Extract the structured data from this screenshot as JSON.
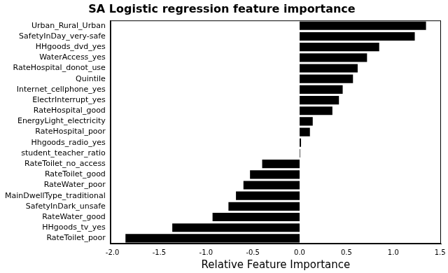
{
  "chart_data": {
    "type": "bar",
    "orientation": "horizontal",
    "title": "SA Logistic regression feature importance",
    "x_label": "Relative Feature Importance",
    "categories": [
      "Urban_Rural_Urban",
      "SafetyInDay_very-safe",
      "HHgoods_dvd_yes",
      "WaterAccess_yes",
      "RateHospital_donot_use",
      "Quintile",
      "Internet_cellphone_yes",
      "ElectrInterrupt_yes",
      "RateHospital_good",
      "EnergyLight_electricity",
      "RateHospital_poor",
      "Hhgoods_radio_yes",
      "student_teacher_ratio",
      "RateToilet_no_access",
      "RateToilet_good",
      "RateWater_poor",
      "MainDwellType_traditional",
      "SafetyInDark_unsafe",
      "RateWater_good",
      "HHgoods_tv_yes",
      "RateToilet_poor"
    ],
    "values": [
      1.35,
      1.23,
      0.85,
      0.72,
      0.62,
      0.57,
      0.46,
      0.42,
      0.35,
      0.14,
      0.11,
      0.015,
      0.005,
      -0.4,
      -0.53,
      -0.6,
      -0.68,
      -0.76,
      -0.93,
      -1.36,
      -1.86
    ],
    "color": "#000000",
    "xlim": [
      -2.02,
      1.51
    ],
    "xticks": [
      {
        "value": -2,
        "label": "-2.0"
      },
      -1.5,
      {
        "value": -1,
        "label": "-1.0"
      },
      -0.5,
      {
        "value": 0,
        "label": "0.0"
      },
      0.5,
      {
        "value": 1,
        "label": "1.0"
      },
      1.5
    ],
    "grid": false
  }
}
